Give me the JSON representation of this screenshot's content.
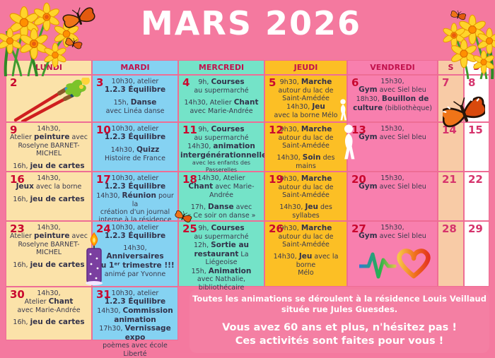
{
  "title": "MARS 2026",
  "weekday_headers": [
    "LUNDI",
    "MARDI",
    "MERCREDI",
    "JEUDI",
    "VENDREDI",
    "S",
    "D"
  ],
  "footer": {
    "line1": "Toutes les animations  se déroulent à la résidence Louis Veillaud",
    "line2": "située rue Jules Guesdes.",
    "line3": "Vous avez 60 ans et plus, n'hésitez pas !",
    "line4": "Ces activités sont faites pour vous !"
  },
  "colors": {
    "page_bg": "#f4799f",
    "monday_cell": "#fbe2a9",
    "tuesday_cell": "#85d2f2",
    "wednesday_cell": "#74e3c8",
    "thursday_cell": "#fcbf25",
    "friday_cell": "#f87fae",
    "saturday_cell": "#f8cba6",
    "sunday_cell": "#ffffff",
    "grid_border": "#ee6d95",
    "day_number": "#c9082f",
    "weekend_number": "#d6336c",
    "header_text": "#c2124d",
    "body_text": "#3a3a4e",
    "title_text": "#ffffff"
  },
  "decorations": [
    "daffodil-bouquet-left",
    "daffodil-bouquet-right",
    "monarch-butterfly",
    "small-butterfly",
    "paintbrushes",
    "walking-person",
    "walking-person",
    "candle",
    "heart-pulse"
  ],
  "weeks": [
    {
      "cells": [
        {
          "day": "2",
          "col": 0,
          "lines": []
        },
        {
          "day": "3",
          "col": 1,
          "lines": [
            [
              "10h30,  atelier"
            ],
            [
              {
                "b": "1.2.3 Équilibre"
              }
            ],
            "",
            [
              "15h, ",
              {
                "b": "Danse"
              }
            ],
            [
              "avec Linéa danse"
            ]
          ]
        },
        {
          "day": "4",
          "col": 2,
          "lines": [
            [
              "9h, ",
              {
                "b": "Courses"
              }
            ],
            [
              "au supermarché"
            ],
            "",
            [
              "14h30, Atelier ",
              {
                "b": "Chant"
              }
            ],
            [
              "avec Marie-Andrée"
            ]
          ]
        },
        {
          "day": "5",
          "col": 3,
          "lines": [
            [
              "9h30, ",
              {
                "b": "Marche"
              }
            ],
            [
              "autour du lac de"
            ],
            [
              "Saint-Amédée"
            ],
            [
              "14h30, ",
              {
                "b": "Jeu"
              }
            ],
            [
              "avec la borne Mélo"
            ]
          ]
        },
        {
          "day": "6",
          "col": 4,
          "lines": [
            [
              "15h30,"
            ],
            [
              {
                "b": "Gym"
              },
              " avec Siel bleu"
            ],
            [
              "18h30, ",
              {
                "b": "Bouillon de"
              }
            ],
            [
              {
                "b": "culture"
              },
              " (bibliothèque)"
            ]
          ]
        },
        {
          "day": "7",
          "col": 5,
          "lines": []
        },
        {
          "day": "8",
          "col": 6,
          "lines": []
        }
      ]
    },
    {
      "cells": [
        {
          "day": "9",
          "col": 0,
          "lines": [
            [
              "14h30,"
            ],
            [
              "Atelier ",
              {
                "b": "peinture"
              },
              " avec"
            ],
            [
              "Roselyne BARNET-MICHEL"
            ],
            "",
            [
              "16h, ",
              {
                "b": "jeu de cartes"
              }
            ]
          ]
        },
        {
          "day": "10",
          "col": 1,
          "lines": [
            [
              "10h30,  atelier"
            ],
            [
              {
                "b": "1.2.3 Équilibre"
              }
            ],
            "",
            [
              "14h30, ",
              {
                "b": "Quizz"
              }
            ],
            [
              "Histoire de France"
            ]
          ]
        },
        {
          "day": "11",
          "col": 2,
          "lines": [
            [
              "9h, ",
              {
                "b": "Courses"
              }
            ],
            [
              "au supermarché"
            ],
            [
              "14h30, ",
              {
                "b": "animation"
              }
            ],
            [
              {
                "b": "intergénérationnelle"
              }
            ],
            {
              "small": [
                "avec les enfants des Passerelles"
              ]
            }
          ]
        },
        {
          "day": "12",
          "col": 3,
          "lines": [
            [
              "9h30, ",
              {
                "b": "Marche"
              }
            ],
            [
              "autour du lac de"
            ],
            [
              "Saint-Amédée"
            ],
            "",
            [
              "14h30, ",
              {
                "b": "Soin"
              },
              " des mains"
            ]
          ]
        },
        {
          "day": "13",
          "col": 4,
          "lines": [
            [
              "15h30,"
            ],
            [
              {
                "b": "Gym"
              },
              " avec Siel bleu"
            ]
          ]
        },
        {
          "day": "14",
          "col": 5,
          "lines": []
        },
        {
          "day": "15",
          "col": 6,
          "lines": []
        }
      ]
    },
    {
      "cells": [
        {
          "day": "16",
          "col": 0,
          "lines": [
            [
              "14h30,"
            ],
            [
              {
                "b": "Jeux"
              },
              " avec la borne"
            ],
            "",
            [
              "16h, ",
              {
                "b": "jeu de cartes"
              }
            ]
          ]
        },
        {
          "day": "17",
          "col": 1,
          "lines": [
            [
              "10h30,  atelier"
            ],
            [
              {
                "b": "1.2.3 Équilibre"
              }
            ],
            [
              "14h30, ",
              {
                "b": "Réunion"
              },
              " pour la"
            ],
            [
              "création d'un journal"
            ],
            [
              "interne à la résidence"
            ]
          ]
        },
        {
          "day": "18",
          "col": 2,
          "lines": [
            [
              "14h30, Atelier"
            ],
            [
              {
                "b": "Chant"
              },
              " avec Marie-Andrée"
            ],
            "",
            [
              "17h, ",
              {
                "b": "Danse"
              },
              "  avec"
            ],
            [
              "« Ce soir on danse »"
            ]
          ]
        },
        {
          "day": "19",
          "col": 3,
          "lines": [
            [
              "9h30, ",
              {
                "b": "Marche"
              }
            ],
            [
              "autour du lac de"
            ],
            [
              "Saint-Amédée"
            ],
            "",
            [
              "14h30, ",
              {
                "b": "Jeu"
              },
              " des syllabes"
            ]
          ]
        },
        {
          "day": "20",
          "col": 4,
          "lines": [
            [
              "15h30,"
            ],
            [
              {
                "b": "Gym"
              },
              " avec Siel bleu"
            ]
          ]
        },
        {
          "day": "21",
          "col": 5,
          "lines": []
        },
        {
          "day": "22",
          "col": 6,
          "lines": []
        }
      ]
    },
    {
      "cells": [
        {
          "day": "23",
          "col": 0,
          "lines": [
            [
              "14h30,"
            ],
            [
              "Atelier ",
              {
                "b": "peinture"
              },
              " avec"
            ],
            [
              "Roselyne BARNET-MICHEL"
            ],
            "",
            [
              "16h, ",
              {
                "b": "jeu de cartes"
              }
            ]
          ]
        },
        {
          "day": "24",
          "col": 1,
          "lines": [
            [
              "10h30,  atelier"
            ],
            [
              {
                "b": "1.2.3 Équilibre"
              }
            ],
            "",
            [
              "14h30,"
            ],
            [
              {
                "b": "Anniversaires"
              }
            ],
            [
              {
                "b": "du 1ᵉʳ trimestre !!!"
              }
            ],
            [
              "animé par Yvonne"
            ]
          ]
        },
        {
          "day": "25",
          "col": 2,
          "lines": [
            [
              "9h, ",
              {
                "b": "Courses"
              }
            ],
            [
              "au supermarché"
            ],
            [
              "12h, ",
              {
                "b": "Sortie au"
              }
            ],
            [
              {
                "b": "restaurant"
              },
              " La Liégeoise"
            ],
            [
              "15h, ",
              {
                "b": "Animation"
              }
            ],
            [
              "avec Nathalie,"
            ],
            [
              "bibliothécaire"
            ]
          ]
        },
        {
          "day": "26",
          "col": 3,
          "lines": [
            [
              "9h30, ",
              {
                "b": "Marche"
              }
            ],
            [
              "autour du lac de"
            ],
            [
              "Saint-Amédée"
            ],
            "",
            [
              "14h30, ",
              {
                "b": "Jeu"
              },
              " avec la borne"
            ],
            [
              "Mélo"
            ]
          ]
        },
        {
          "day": "27",
          "col": 4,
          "lines": [
            [
              "15h30,"
            ],
            [
              {
                "b": "Gym"
              },
              " avec Siel bleu"
            ]
          ]
        },
        {
          "day": "28",
          "col": 5,
          "lines": []
        },
        {
          "day": "29",
          "col": 6,
          "lines": []
        }
      ]
    },
    {
      "cells": [
        {
          "day": "30",
          "col": 0,
          "lines": [
            [
              "14h30,"
            ],
            [
              "Atelier ",
              {
                "b": "Chant"
              }
            ],
            [
              "avec Marie-Andrée"
            ],
            "",
            [
              "16h, ",
              {
                "b": "jeu de cartes"
              }
            ]
          ]
        },
        {
          "day": "31",
          "col": 1,
          "lines": [
            [
              "10h30,  atelier"
            ],
            [
              {
                "b": "1.2.3 Équilibre"
              }
            ],
            [
              "14h30, ",
              {
                "b": "Commission"
              }
            ],
            [
              {
                "b": "animation"
              }
            ],
            [
              "17h30, ",
              {
                "b": "Vernissage expo"
              }
            ],
            [
              "poèmes avec école Liberté"
            ]
          ]
        }
      ]
    }
  ]
}
